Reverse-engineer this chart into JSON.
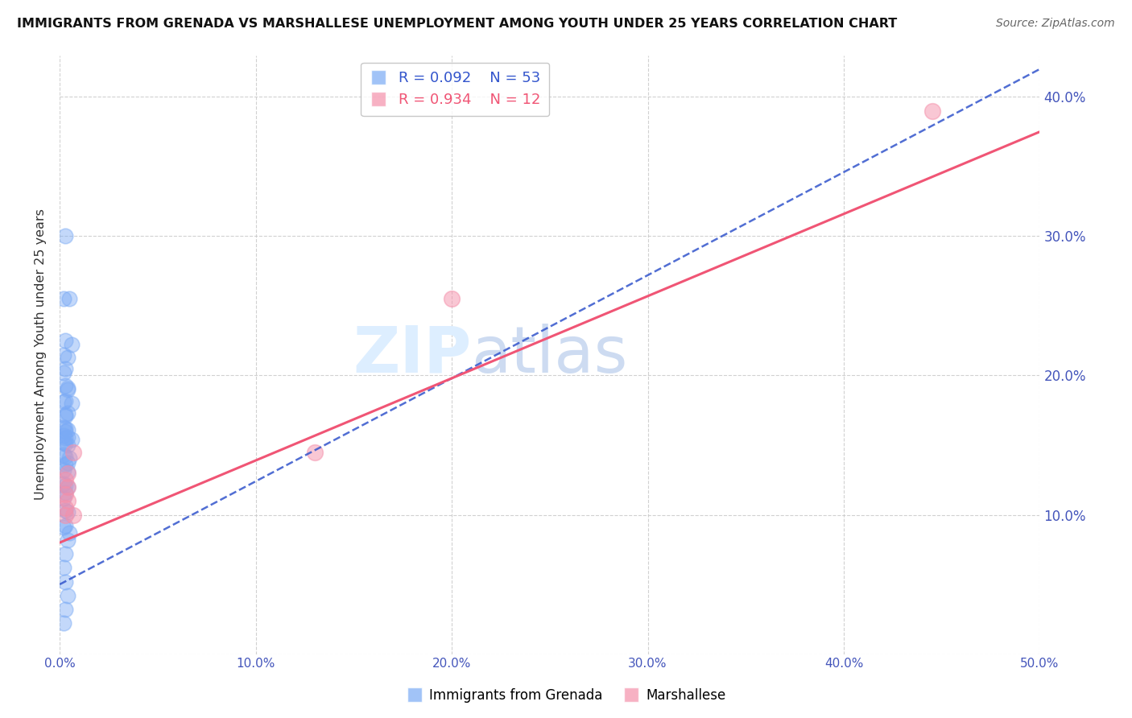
{
  "title": "IMMIGRANTS FROM GRENADA VS MARSHALLESE UNEMPLOYMENT AMONG YOUTH UNDER 25 YEARS CORRELATION CHART",
  "source": "Source: ZipAtlas.com",
  "ylabel": "Unemployment Among Youth under 25 years",
  "xlim": [
    0,
    0.5
  ],
  "ylim": [
    0,
    0.43
  ],
  "xticks": [
    0.0,
    0.1,
    0.2,
    0.3,
    0.4,
    0.5
  ],
  "yticks": [
    0.0,
    0.1,
    0.2,
    0.3,
    0.4
  ],
  "ytick_labels": [
    "",
    "10.0%",
    "20.0%",
    "30.0%",
    "40.0%"
  ],
  "xtick_labels": [
    "0.0%",
    "10.0%",
    "20.0%",
    "30.0%",
    "40.0%",
    "50.0%"
  ],
  "grenada_R": 0.092,
  "grenada_N": 53,
  "marshallese_R": 0.934,
  "marshallese_N": 12,
  "grenada_color": "#7aaaf5",
  "marshallese_color": "#f590aa",
  "grenada_line_color": "#3355cc",
  "marshallese_line_color": "#f05575",
  "watermark_zip": "ZIP",
  "watermark_atlas": "atlas",
  "watermark_color_zip": "#ddeeff",
  "watermark_color_atlas": "#c8d8f0",
  "legend_label_grenada": "Immigrants from Grenada",
  "legend_label_marshallese": "Marshallese",
  "grenada_x": [
    0.003,
    0.005,
    0.002,
    0.003,
    0.006,
    0.002,
    0.004,
    0.003,
    0.002,
    0.003,
    0.004,
    0.004,
    0.003,
    0.002,
    0.006,
    0.004,
    0.003,
    0.003,
    0.002,
    0.003,
    0.004,
    0.003,
    0.002,
    0.004,
    0.003,
    0.006,
    0.002,
    0.003,
    0.004,
    0.002,
    0.003,
    0.005,
    0.004,
    0.003,
    0.002,
    0.004,
    0.002,
    0.003,
    0.004,
    0.003,
    0.002,
    0.003,
    0.004,
    0.003,
    0.002,
    0.005,
    0.004,
    0.003,
    0.002,
    0.003,
    0.004,
    0.003,
    0.002
  ],
  "grenada_y": [
    0.3,
    0.255,
    0.255,
    0.225,
    0.222,
    0.215,
    0.213,
    0.205,
    0.202,
    0.193,
    0.191,
    0.19,
    0.182,
    0.181,
    0.18,
    0.173,
    0.172,
    0.171,
    0.163,
    0.162,
    0.161,
    0.16,
    0.157,
    0.156,
    0.155,
    0.154,
    0.152,
    0.151,
    0.15,
    0.143,
    0.142,
    0.141,
    0.137,
    0.136,
    0.132,
    0.131,
    0.122,
    0.121,
    0.12,
    0.116,
    0.112,
    0.103,
    0.102,
    0.092,
    0.091,
    0.087,
    0.082,
    0.072,
    0.062,
    0.052,
    0.042,
    0.032,
    0.022
  ],
  "marshallese_x": [
    0.003,
    0.007,
    0.003,
    0.004,
    0.003,
    0.004,
    0.007,
    0.13,
    0.2,
    0.445,
    0.003,
    0.004
  ],
  "marshallese_y": [
    0.1,
    0.1,
    0.115,
    0.12,
    0.125,
    0.13,
    0.145,
    0.145,
    0.255,
    0.39,
    0.105,
    0.11
  ],
  "grenada_line_x0": 0.0,
  "grenada_line_y0": 0.05,
  "grenada_line_x1": 0.5,
  "grenada_line_y1": 0.42,
  "marsh_line_x0": 0.0,
  "marsh_line_y0": 0.08,
  "marsh_line_x1": 0.5,
  "marsh_line_y1": 0.375
}
